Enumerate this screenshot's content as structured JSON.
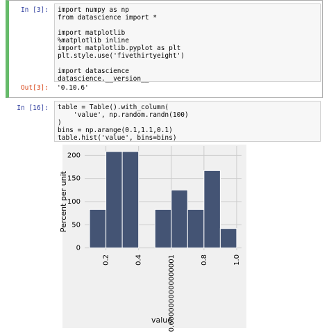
{
  "cells": [
    {
      "prompt": "In [3]:",
      "code": [
        [
          "import numpy as np",
          "from datascience import *"
        ],
        [
          "import matplotlib",
          "%matplotlib inline",
          "import matplotlib.pyplot as plt",
          "plt.style.use('fivethirtyeight')"
        ],
        [
          "import datascience",
          "datascience.__version__"
        ]
      ],
      "out_prompt": "Out[3]:",
      "output": "'0.10.6'"
    },
    {
      "prompt": "In [16]:",
      "code": [
        [
          "table = Table().with_column(",
          "    'value', np.random.randn(100)",
          ")",
          "bins = np.arange(0.1,1.1,0.1)",
          "table.hist('value', bins=bins)"
        ]
      ]
    }
  ],
  "chart_data": {
    "type": "histogram",
    "xlabel": "value",
    "ylabel": "Percent per unit",
    "bins": [
      0.1,
      0.2,
      0.3,
      0.4,
      0.5,
      0.6,
      0.7,
      0.8,
      0.9,
      1.0
    ],
    "values": [
      83,
      208,
      208,
      0,
      83,
      125,
      83,
      167,
      42
    ],
    "color": "#445474",
    "xlim": [
      0.07,
      1.03
    ],
    "ylim": [
      -5,
      220
    ],
    "xticks": [
      0.2,
      0.4,
      {
        "value": 0.6,
        "label": "0.6000000000000001"
      },
      0.8,
      {
        "value": 1.0,
        "label": "1.0"
      }
    ],
    "yticks": [
      0,
      50,
      100,
      150,
      200
    ],
    "grid": true
  }
}
